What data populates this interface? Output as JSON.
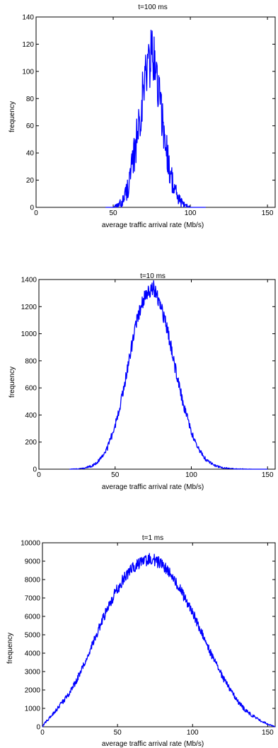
{
  "colors": {
    "series": "#0000ff",
    "axes": "#000000",
    "background": "#ffffff"
  },
  "chart_data": [
    {
      "type": "line",
      "title": "t=100 ms",
      "xlabel": "average traffic arrival rate (Mb/s)",
      "ylabel": "frequency",
      "xlim": [
        0,
        155
      ],
      "ylim": [
        0,
        140
      ],
      "xticks": [
        0,
        50,
        100,
        150
      ],
      "yticks": [
        0,
        20,
        40,
        60,
        80,
        100,
        120,
        140
      ],
      "grid": false,
      "series": [
        {
          "x": [
            45,
            50,
            53,
            55,
            57,
            59,
            61,
            63,
            65,
            67,
            69,
            71,
            73,
            75,
            77,
            79,
            81,
            83,
            85,
            87,
            89,
            91,
            93,
            95,
            97,
            100,
            103,
            110
          ],
          "y": [
            0,
            0,
            1,
            3,
            7,
            13,
            22,
            34,
            49,
            66,
            82,
            96,
            108,
            112,
            104,
            90,
            73,
            55,
            39,
            26,
            16,
            9,
            5,
            2,
            1,
            0,
            0,
            0
          ],
          "noise": 16
        }
      ]
    },
    {
      "type": "line",
      "title": "t=10 ms",
      "xlabel": "average traffic arrival rate (Mb/s)",
      "ylabel": "frequency",
      "xlim": [
        0,
        155
      ],
      "ylim": [
        0,
        1400
      ],
      "xticks": [
        0,
        50,
        100,
        150
      ],
      "yticks": [
        0,
        200,
        400,
        600,
        800,
        1000,
        1200,
        1400
      ],
      "grid": false,
      "series": [
        {
          "x": [
            20,
            25,
            30,
            35,
            40,
            45,
            50,
            55,
            60,
            65,
            70,
            75,
            80,
            85,
            90,
            95,
            100,
            105,
            110,
            115,
            120,
            125,
            130,
            140,
            150
          ],
          "y": [
            0,
            2,
            8,
            25,
            70,
            160,
            320,
            560,
            860,
            1130,
            1310,
            1340,
            1220,
            990,
            720,
            470,
            270,
            140,
            65,
            28,
            12,
            5,
            2,
            0,
            0
          ],
          "noise": 40
        }
      ]
    },
    {
      "type": "line",
      "title": "t=1 ms",
      "xlabel": "average traffic arrival rate (Mb/s)",
      "ylabel": "frequency",
      "xlim": [
        0,
        155
      ],
      "ylim": [
        0,
        10000
      ],
      "xticks": [
        0,
        50,
        100,
        150
      ],
      "yticks": [
        0,
        1000,
        2000,
        3000,
        4000,
        5000,
        6000,
        7000,
        8000,
        9000,
        10000
      ],
      "grid": false,
      "series": [
        {
          "x": [
            0,
            2,
            5,
            10,
            15,
            20,
            25,
            30,
            35,
            40,
            45,
            50,
            55,
            60,
            65,
            70,
            75,
            80,
            85,
            90,
            95,
            100,
            105,
            110,
            115,
            120,
            125,
            130,
            135,
            140,
            145,
            150,
            155
          ],
          "y": [
            0,
            250,
            500,
            1000,
            1500,
            2100,
            2900,
            3800,
            4800,
            5800,
            6700,
            7500,
            8150,
            8650,
            8950,
            9100,
            9050,
            8800,
            8300,
            7700,
            7000,
            6200,
            5300,
            4400,
            3500,
            2700,
            2000,
            1400,
            900,
            600,
            350,
            150,
            0
          ],
          "noise": 220
        }
      ]
    }
  ]
}
